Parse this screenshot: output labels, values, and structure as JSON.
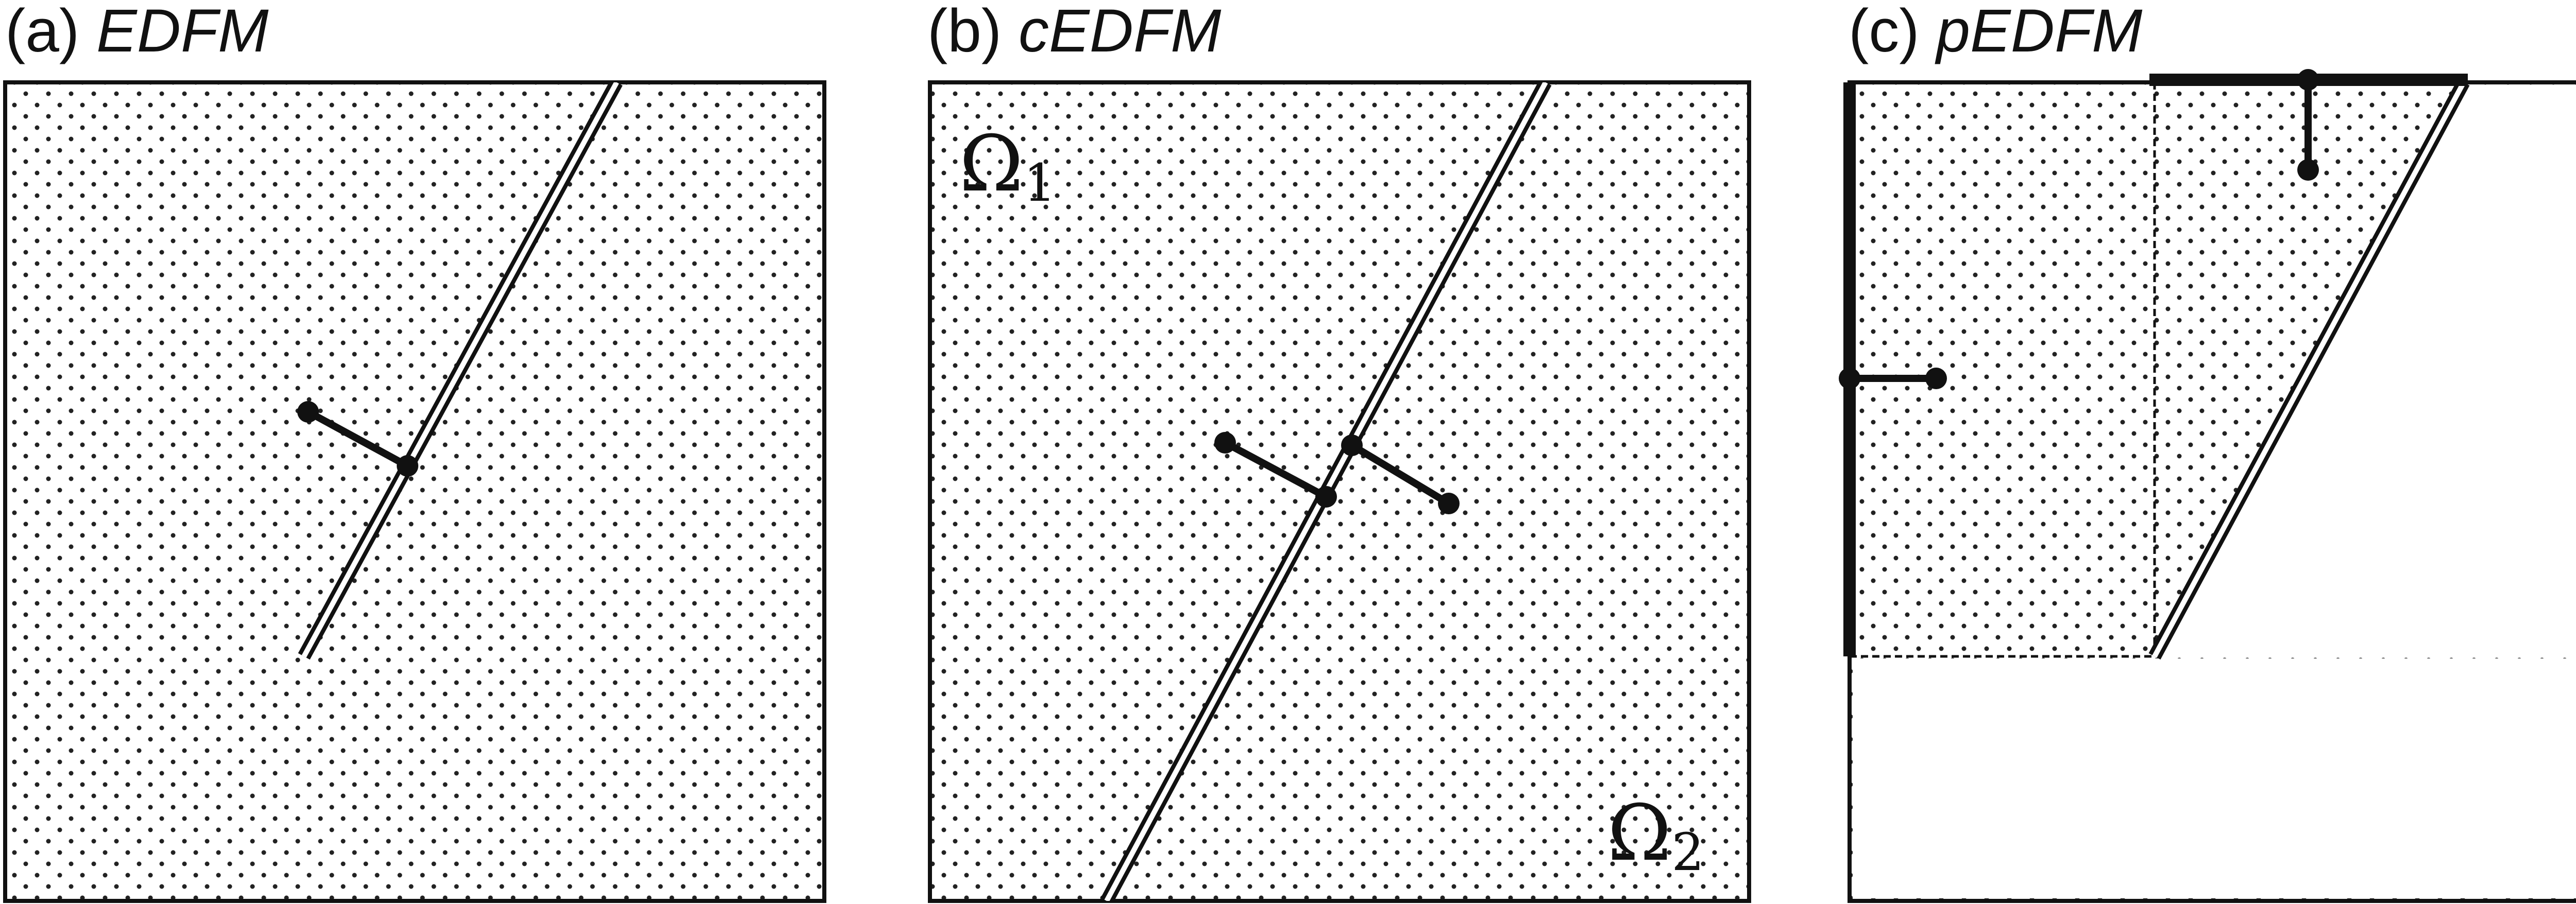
{
  "panels": [
    {
      "tag": "(a)",
      "name": "EDFM"
    },
    {
      "tag": "(b)",
      "name": "cEDFM"
    },
    {
      "tag": "(c)",
      "name": "pEDFM"
    }
  ],
  "labels": {
    "omega1_symbol": "Ω",
    "omega1_sub": "1",
    "omega2_symbol": "Ω",
    "omega2_sub": "2"
  },
  "colors": {
    "ink": "#111111",
    "background": "#ffffff",
    "dots": "#222222"
  }
}
